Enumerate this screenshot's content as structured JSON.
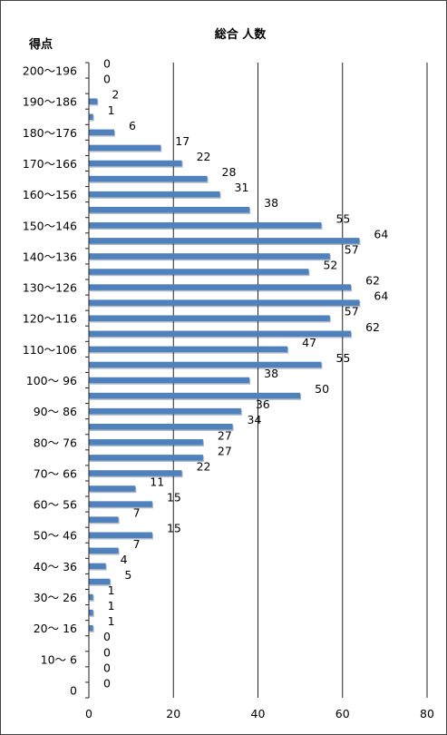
{
  "chart_data": {
    "type": "bar",
    "orientation": "horizontal",
    "title": "総合 人数",
    "ylabel": "得点",
    "xlabel": "",
    "xlim": [
      0,
      80
    ],
    "xticks": [
      0,
      20,
      40,
      60,
      80
    ],
    "grid": "vertical",
    "bar_color": "#4f81bd",
    "categories": [
      "200〜196",
      "",
      "190〜186",
      "",
      "180〜176",
      "",
      "170〜166",
      "",
      "160〜156",
      "",
      "150〜146",
      "",
      "140〜136",
      "",
      "130〜126",
      "",
      "120〜116",
      "",
      "110〜106",
      "",
      "100〜 96",
      "",
      "90〜 86",
      "",
      "80〜 76",
      "",
      "70〜 66",
      "",
      "60〜 56",
      "",
      "50〜 46",
      "",
      "40〜 36",
      "",
      "30〜 26",
      "",
      "20〜 16",
      "",
      "10〜  6",
      "",
      "0"
    ],
    "values": [
      0,
      0,
      2,
      1,
      6,
      17,
      22,
      28,
      31,
      38,
      55,
      64,
      57,
      52,
      62,
      64,
      57,
      62,
      47,
      55,
      38,
      50,
      36,
      34,
      27,
      27,
      22,
      11,
      15,
      7,
      15,
      7,
      4,
      5,
      1,
      1,
      1,
      0,
      0,
      0,
      0
    ]
  }
}
